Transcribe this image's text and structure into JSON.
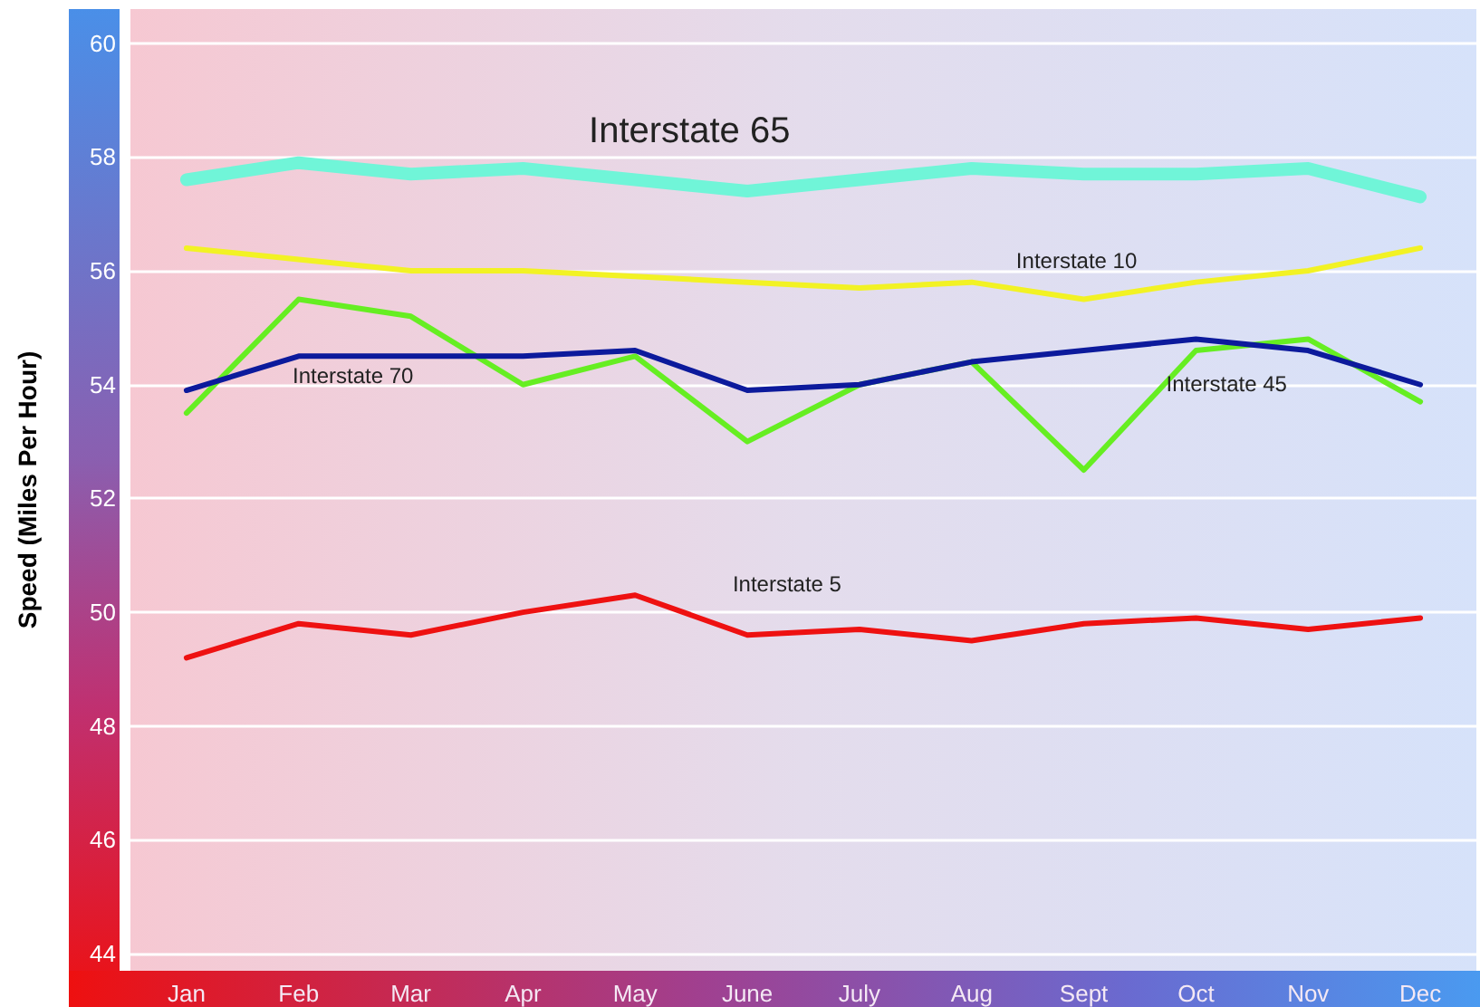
{
  "chart_data": {
    "type": "line",
    "ylabel": "Speed (Miles Per Hour)",
    "categories": [
      "Jan",
      "Feb",
      "Mar",
      "Apr",
      "May",
      "June",
      "July",
      "Aug",
      "Sept",
      "Oct",
      "Nov",
      "Dec"
    ],
    "ylim": [
      43.7,
      60.6
    ],
    "yticks": [
      44,
      46,
      48,
      50,
      52,
      54,
      56,
      58,
      60
    ],
    "grid": "y",
    "marker": "none",
    "line_style": "solid",
    "series": [
      {
        "name": "Interstate 65",
        "color": "#70f5d8",
        "values": [
          57.6,
          57.9,
          57.7,
          57.8,
          57.6,
          57.4,
          57.6,
          57.8,
          57.7,
          57.7,
          57.8,
          57.3
        ]
      },
      {
        "name": "Interstate 10",
        "color": "#f2f224",
        "values": [
          56.4,
          56.2,
          56.0,
          56.0,
          55.9,
          55.8,
          55.7,
          55.8,
          55.5,
          55.8,
          56.0,
          56.4
        ]
      },
      {
        "name": "Interstate 70",
        "color": "#0c1a9c",
        "values": [
          53.9,
          54.5,
          54.5,
          54.5,
          54.6,
          53.9,
          54.0,
          54.4,
          54.6,
          54.8,
          54.6,
          54.0
        ]
      },
      {
        "name": "Interstate 45",
        "color": "#66ee22",
        "values": [
          53.5,
          55.5,
          55.2,
          54.0,
          54.5,
          53.0,
          54.0,
          54.4,
          52.5,
          54.6,
          54.8,
          53.7
        ]
      },
      {
        "name": "Interstate 5",
        "color": "#ee1111",
        "values": [
          49.2,
          49.8,
          49.6,
          50.0,
          50.3,
          49.6,
          49.7,
          49.5,
          49.8,
          49.9,
          49.7,
          49.9
        ]
      }
    ]
  }
}
